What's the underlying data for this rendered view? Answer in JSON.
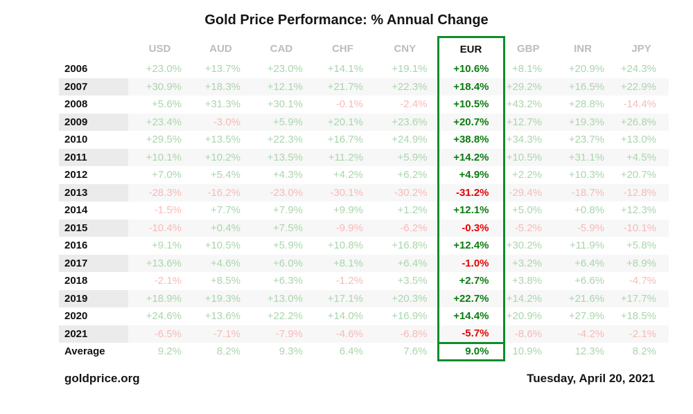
{
  "title": "Gold Price Performance: % Annual Change",
  "footer": {
    "source": "goldprice.org",
    "date": "Tuesday, April 20, 2021"
  },
  "colors": {
    "pos": "#aad5ac",
    "neg": "#f7bab8",
    "eur-pos": "#0a7c10",
    "eur-neg": "#e80000",
    "border-green": "#0e8c2a",
    "header-gray": "#bcbcbc",
    "alt-row": "#f7f7f7",
    "alt-year": "#ebebeb"
  },
  "chart_data": {
    "type": "table",
    "title": "Gold Price Performance: % Annual Change",
    "highlight_column": "EUR",
    "columns": [
      "USD",
      "AUD",
      "CAD",
      "CHF",
      "CNY",
      "EUR",
      "GBP",
      "INR",
      "JPY"
    ],
    "rows": [
      {
        "label": "2006",
        "values": [
          "+23.0%",
          "+13.7%",
          "+23.0%",
          "+14.1%",
          "+19.1%",
          "+10.6%",
          "+8.1%",
          "+20.9%",
          "+24.3%"
        ]
      },
      {
        "label": "2007",
        "values": [
          "+30.9%",
          "+18.3%",
          "+12.1%",
          "+21.7%",
          "+22.3%",
          "+18.4%",
          "+29.2%",
          "+16.5%",
          "+22.9%"
        ]
      },
      {
        "label": "2008",
        "values": [
          "+5.6%",
          "+31.3%",
          "+30.1%",
          "-0.1%",
          "-2.4%",
          "+10.5%",
          "+43.2%",
          "+28.8%",
          "-14.4%"
        ]
      },
      {
        "label": "2009",
        "values": [
          "+23.4%",
          "-3.0%",
          "+5.9%",
          "+20.1%",
          "+23.6%",
          "+20.7%",
          "+12.7%",
          "+19.3%",
          "+26.8%"
        ]
      },
      {
        "label": "2010",
        "values": [
          "+29.5%",
          "+13.5%",
          "+22.3%",
          "+16.7%",
          "+24.9%",
          "+38.8%",
          "+34.3%",
          "+23.7%",
          "+13.0%"
        ]
      },
      {
        "label": "2011",
        "values": [
          "+10.1%",
          "+10.2%",
          "+13.5%",
          "+11.2%",
          "+5.9%",
          "+14.2%",
          "+10.5%",
          "+31.1%",
          "+4.5%"
        ]
      },
      {
        "label": "2012",
        "values": [
          "+7.0%",
          "+5.4%",
          "+4.3%",
          "+4.2%",
          "+6.2%",
          "+4.9%",
          "+2.2%",
          "+10.3%",
          "+20.7%"
        ]
      },
      {
        "label": "2013",
        "values": [
          "-28.3%",
          "-16.2%",
          "-23.0%",
          "-30.1%",
          "-30.2%",
          "-31.2%",
          "-29.4%",
          "-18.7%",
          "-12.8%"
        ]
      },
      {
        "label": "2014",
        "values": [
          "-1.5%",
          "+7.7%",
          "+7.9%",
          "+9.9%",
          "+1.2%",
          "+12.1%",
          "+5.0%",
          "+0.8%",
          "+12.3%"
        ]
      },
      {
        "label": "2015",
        "values": [
          "-10.4%",
          "+0.4%",
          "+7.5%",
          "-9.9%",
          "-6.2%",
          "-0.3%",
          "-5.2%",
          "-5.9%",
          "-10.1%"
        ]
      },
      {
        "label": "2016",
        "values": [
          "+9.1%",
          "+10.5%",
          "+5.9%",
          "+10.8%",
          "+16.8%",
          "+12.4%",
          "+30.2%",
          "+11.9%",
          "+5.8%"
        ]
      },
      {
        "label": "2017",
        "values": [
          "+13.6%",
          "+4.6%",
          "+6.0%",
          "+8.1%",
          "+6.4%",
          "-1.0%",
          "+3.2%",
          "+6.4%",
          "+8.9%"
        ]
      },
      {
        "label": "2018",
        "values": [
          "-2.1%",
          "+8.5%",
          "+6.3%",
          "-1.2%",
          "+3.5%",
          "+2.7%",
          "+3.8%",
          "+6.6%",
          "-4.7%"
        ]
      },
      {
        "label": "2019",
        "values": [
          "+18.9%",
          "+19.3%",
          "+13.0%",
          "+17.1%",
          "+20.3%",
          "+22.7%",
          "+14.2%",
          "+21.6%",
          "+17.7%"
        ]
      },
      {
        "label": "2020",
        "values": [
          "+24.6%",
          "+13.6%",
          "+22.2%",
          "+14.0%",
          "+16.9%",
          "+14.4%",
          "+20.9%",
          "+27.9%",
          "+18.5%"
        ]
      },
      {
        "label": "2021",
        "values": [
          "-6.5%",
          "-7.1%",
          "-7.9%",
          "-4.6%",
          "-6.8%",
          "-5.7%",
          "-8.6%",
          "-4.2%",
          "-2.1%"
        ]
      }
    ],
    "average_row": {
      "label": "Average",
      "values": [
        "9.2%",
        "8.2%",
        "9.3%",
        "6.4%",
        "7.6%",
        "9.0%",
        "10.9%",
        "12.3%",
        "8.2%"
      ]
    },
    "legend_position": "none"
  }
}
